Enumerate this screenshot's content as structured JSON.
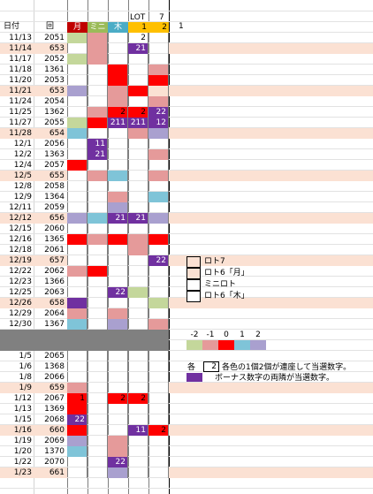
{
  "headers": {
    "date": "日付",
    "round": "回",
    "days": [
      "月",
      "ミニ",
      "木"
    ],
    "lot": "LOT",
    "lot_nums": [
      "1",
      "2"
    ],
    "seven": "7",
    "one": "1"
  },
  "colors": {
    "pink": "#fbe1d3",
    "light_red": "#e59a9a",
    "red": "#ff0000",
    "cyan": "#7fc4d8",
    "purple": "#7030a0",
    "lavender": "#a9a0cf",
    "light_green": "#c4d79b",
    "gray": "#808080"
  },
  "rows": [
    {
      "date": "11/13",
      "no": "2051",
      "bg": "",
      "c": [
        "light_green",
        "light_red",
        "",
        "",
        ""
      ],
      "t": [
        "",
        "",
        "",
        "2",
        ""
      ]
    },
    {
      "date": "11/14",
      "no": "653",
      "bg": "pink",
      "c": [
        "",
        "light_red",
        "",
        "purple",
        ""
      ],
      "t": [
        "",
        "",
        "",
        "21",
        ""
      ]
    },
    {
      "date": "11/17",
      "no": "2052",
      "bg": "",
      "c": [
        "light_green",
        "light_red",
        "",
        "",
        ""
      ],
      "t": [
        "",
        "",
        "",
        "",
        ""
      ]
    },
    {
      "date": "11/18",
      "no": "1361",
      "bg": "",
      "c": [
        "",
        "",
        "red",
        "",
        "light_red"
      ],
      "t": [
        "",
        "",
        "",
        "",
        ""
      ]
    },
    {
      "date": "11/20",
      "no": "2053",
      "bg": "",
      "c": [
        "",
        "",
        "red",
        "",
        "red"
      ],
      "t": [
        "",
        "",
        "",
        "",
        ""
      ]
    },
    {
      "date": "11/21",
      "no": "653",
      "bg": "pink",
      "c": [
        "lavender",
        "",
        "light_red",
        "red",
        "pink"
      ],
      "t": [
        "",
        "",
        "",
        "",
        ""
      ]
    },
    {
      "date": "11/24",
      "no": "2054",
      "bg": "",
      "c": [
        "",
        "",
        "light_red",
        "",
        "light_red"
      ],
      "t": [
        "",
        "",
        "",
        "",
        ""
      ]
    },
    {
      "date": "11/25",
      "no": "1362",
      "bg": "",
      "c": [
        "",
        "light_red",
        "red",
        "red",
        "purple"
      ],
      "t": [
        "",
        "",
        "2",
        "2",
        "22"
      ]
    },
    {
      "date": "11/27",
      "no": "2055",
      "bg": "",
      "c": [
        "light_green",
        "red",
        "purple",
        "purple",
        "purple"
      ],
      "t": [
        "",
        "",
        "211",
        "211",
        "12"
      ]
    },
    {
      "date": "11/28",
      "no": "654",
      "bg": "pink",
      "c": [
        "cyan",
        "",
        "",
        "light_red",
        "lavender"
      ],
      "t": [
        "",
        "",
        "",
        "",
        ""
      ]
    },
    {
      "date": "12/1",
      "no": "2056",
      "bg": "",
      "c": [
        "",
        "purple",
        "",
        "",
        ""
      ],
      "t": [
        "",
        "11",
        "",
        "",
        ""
      ]
    },
    {
      "date": "12/2",
      "no": "1363",
      "bg": "",
      "c": [
        "",
        "purple",
        "",
        "",
        "light_red"
      ],
      "t": [
        "",
        "21",
        "",
        "",
        ""
      ]
    },
    {
      "date": "12/4",
      "no": "2057",
      "bg": "",
      "c": [
        "red",
        "",
        "",
        "",
        ""
      ],
      "t": [
        "",
        "",
        "",
        "",
        ""
      ]
    },
    {
      "date": "12/5",
      "no": "655",
      "bg": "pink",
      "c": [
        "",
        "light_red",
        "cyan",
        "",
        "light_red"
      ],
      "t": [
        "",
        "",
        "",
        "",
        ""
      ]
    },
    {
      "date": "12/8",
      "no": "2058",
      "bg": "",
      "c": [
        "",
        "",
        "",
        "",
        ""
      ],
      "t": [
        "",
        "",
        "",
        "",
        ""
      ]
    },
    {
      "date": "12/9",
      "no": "1364",
      "bg": "",
      "c": [
        "",
        "",
        "light_red",
        "",
        "cyan"
      ],
      "t": [
        "",
        "",
        "",
        "",
        ""
      ]
    },
    {
      "date": "12/11",
      "no": "2059",
      "bg": "",
      "c": [
        "",
        "",
        "lavender",
        "",
        ""
      ],
      "t": [
        "",
        "",
        "",
        "",
        ""
      ]
    },
    {
      "date": "12/12",
      "no": "656",
      "bg": "pink",
      "c": [
        "lavender",
        "cyan",
        "purple",
        "purple",
        "lavender"
      ],
      "t": [
        "",
        "",
        "21",
        "21",
        ""
      ]
    },
    {
      "date": "12/15",
      "no": "2060",
      "bg": "",
      "c": [
        "",
        "",
        "",
        "",
        ""
      ],
      "t": [
        "",
        "",
        "",
        "",
        ""
      ]
    },
    {
      "date": "12/16",
      "no": "1365",
      "bg": "",
      "c": [
        "red",
        "light_red",
        "red",
        "light_red",
        "red"
      ],
      "t": [
        "",
        "",
        "",
        "",
        ""
      ]
    },
    {
      "date": "12/18",
      "no": "2061",
      "bg": "",
      "c": [
        "",
        "",
        "",
        "light_red",
        ""
      ],
      "t": [
        "",
        "",
        "",
        "",
        ""
      ]
    },
    {
      "date": "12/19",
      "no": "657",
      "bg": "pink",
      "c": [
        "",
        "",
        "",
        "",
        "purple"
      ],
      "t": [
        "",
        "",
        "",
        "",
        "22"
      ]
    },
    {
      "date": "12/22",
      "no": "2062",
      "bg": "",
      "c": [
        "light_red",
        "red",
        "",
        "",
        ""
      ],
      "t": [
        "",
        "",
        "",
        "",
        ""
      ]
    },
    {
      "date": "12/23",
      "no": "1366",
      "bg": "",
      "c": [
        "",
        "",
        "",
        "",
        ""
      ],
      "t": [
        "",
        "",
        "",
        "",
        ""
      ]
    },
    {
      "date": "12/25",
      "no": "2063",
      "bg": "",
      "c": [
        "",
        "",
        "purple",
        "light_green",
        ""
      ],
      "t": [
        "",
        "",
        "22",
        "",
        ""
      ]
    },
    {
      "date": "12/26",
      "no": "658",
      "bg": "pink",
      "c": [
        "purple",
        "",
        "",
        "",
        "light_green"
      ],
      "t": [
        "",
        "",
        "",
        "",
        ""
      ]
    },
    {
      "date": "12/29",
      "no": "2064",
      "bg": "",
      "c": [
        "light_red",
        "",
        "light_red",
        "",
        ""
      ],
      "t": [
        "",
        "",
        "",
        "",
        ""
      ]
    },
    {
      "date": "12/30",
      "no": "1367",
      "bg": "",
      "c": [
        "cyan",
        "",
        "lavender",
        "",
        "light_red"
      ],
      "t": [
        "",
        "",
        "",
        "",
        ""
      ]
    }
  ],
  "rows2": [
    {
      "date": "1/5",
      "no": "2065",
      "bg": "",
      "c": [
        "",
        "",
        "",
        "",
        ""
      ],
      "t": [
        "",
        "",
        "",
        "",
        ""
      ]
    },
    {
      "date": "1/6",
      "no": "1368",
      "bg": "",
      "c": [
        "",
        "",
        "",
        "",
        ""
      ],
      "t": [
        "",
        "",
        "",
        "",
        ""
      ]
    },
    {
      "date": "1/8",
      "no": "2066",
      "bg": "",
      "c": [
        "",
        "",
        "",
        "",
        ""
      ],
      "t": [
        "",
        "",
        "",
        "",
        ""
      ]
    },
    {
      "date": "1/9",
      "no": "659",
      "bg": "pink",
      "c": [
        "light_red",
        "",
        "",
        "",
        ""
      ],
      "t": [
        "",
        "",
        "",
        "",
        ""
      ]
    },
    {
      "date": "1/12",
      "no": "2067",
      "bg": "",
      "c": [
        "red",
        "",
        "red",
        "red",
        ""
      ],
      "t": [
        "1",
        "",
        "2",
        "2",
        ""
      ]
    },
    {
      "date": "1/13",
      "no": "1369",
      "bg": "",
      "c": [
        "red",
        "",
        "",
        "",
        ""
      ],
      "t": [
        "",
        "",
        "",
        "",
        ""
      ]
    },
    {
      "date": "1/15",
      "no": "2068",
      "bg": "",
      "c": [
        "purple",
        "",
        "",
        "",
        ""
      ],
      "t": [
        "22",
        "",
        "",
        "",
        ""
      ]
    },
    {
      "date": "1/16",
      "no": "660",
      "bg": "pink",
      "c": [
        "red",
        "",
        "",
        "purple",
        "red"
      ],
      "t": [
        "",
        "",
        "",
        "11",
        "2"
      ]
    },
    {
      "date": "1/19",
      "no": "2069",
      "bg": "",
      "c": [
        "lavender",
        "",
        "light_red",
        "",
        ""
      ],
      "t": [
        "",
        "",
        "",
        "",
        ""
      ]
    },
    {
      "date": "1/20",
      "no": "1370",
      "bg": "",
      "c": [
        "cyan",
        "",
        "light_red",
        "",
        ""
      ],
      "t": [
        "",
        "",
        "",
        "",
        ""
      ]
    },
    {
      "date": "1/22",
      "no": "2070",
      "bg": "",
      "c": [
        "",
        "",
        "purple",
        "",
        ""
      ],
      "t": [
        "",
        "",
        "22",
        "",
        ""
      ]
    },
    {
      "date": "1/23",
      "no": "661",
      "bg": "pink",
      "c": [
        "",
        "",
        "lavender",
        "",
        ""
      ],
      "t": [
        "",
        "",
        "",
        "",
        ""
      ]
    }
  ],
  "legend": {
    "items": [
      "ロト7",
      "ロト6「月」",
      "ミニロト",
      "ロト6「木」"
    ],
    "scale_labels": [
      "-2",
      "-1",
      "0",
      "1",
      "2"
    ],
    "note_prefix": "各",
    "note_num": "2",
    "note_text": "各色の1個2個が連座して当選数字。",
    "note2": "ボーナス数字の両隣が当選数字。"
  }
}
